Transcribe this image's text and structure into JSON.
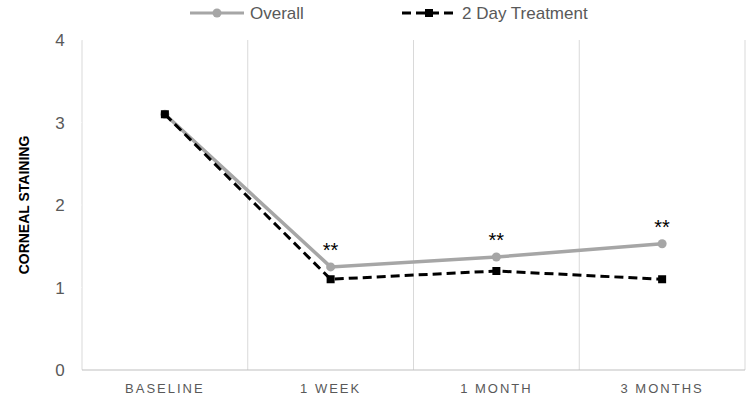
{
  "chart_data": {
    "type": "line",
    "y_label": "CORNEAL STAINING",
    "categories": [
      "BASELINE",
      "1 WEEK",
      "1 MONTH",
      "3 MONTHS"
    ],
    "series": [
      {
        "name": "Overall",
        "color": "#a6a6a6",
        "marker": "circle",
        "line_style": "solid",
        "values": [
          3.1,
          1.25,
          1.37,
          1.53
        ]
      },
      {
        "name": "2 Day Treatment",
        "color": "#000000",
        "marker": "square",
        "line_style": "dashed",
        "values": [
          3.1,
          1.1,
          1.2,
          1.1
        ]
      }
    ],
    "ylim": [
      0,
      4
    ],
    "yticks": [
      0,
      1,
      2,
      3,
      4
    ],
    "grid": true,
    "legend": "top",
    "annotations": [
      {
        "text": "**",
        "category": "1 WEEK"
      },
      {
        "text": "**",
        "category": "1 MONTH"
      },
      {
        "text": "**",
        "category": "3 MONTHS"
      }
    ]
  }
}
